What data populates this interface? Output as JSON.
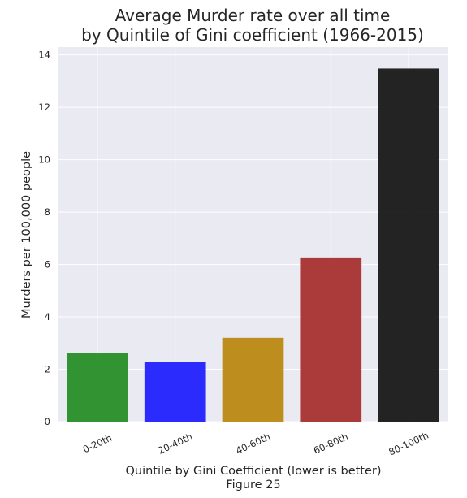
{
  "chart_data": {
    "type": "bar",
    "title_lines": [
      "Average Murder rate over all time",
      "by Quintile of Gini coefficient (1966-2015)"
    ],
    "xlabel": "Quintile by Gini Coefficient (lower is better)",
    "caption": "Figure 25",
    "ylabel": "Murders per 100,000 people",
    "categories": [
      "0-20th",
      "20-40th",
      "40-60th",
      "60-80th",
      "80-100th"
    ],
    "values": [
      2.62,
      2.29,
      3.2,
      6.27,
      13.48
    ],
    "colors": [
      "#228b22",
      "#1a1aff",
      "#b8860b",
      "#a52a2a",
      "#111111"
    ],
    "ylim": [
      0,
      14.3
    ],
    "yticks": [
      0,
      2,
      4,
      6,
      8,
      10,
      12,
      14
    ],
    "grid": true,
    "background": "#eaeaf2"
  }
}
